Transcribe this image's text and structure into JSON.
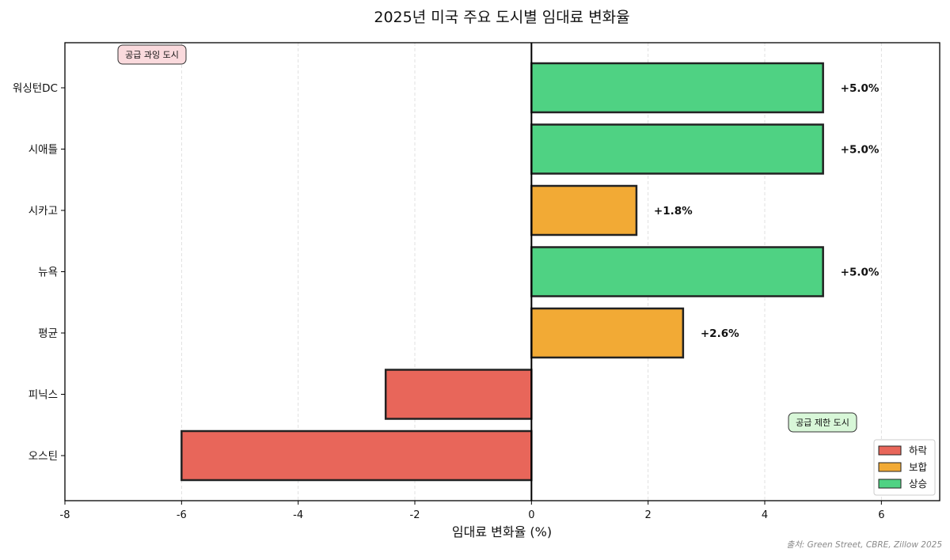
{
  "chart_data": {
    "type": "bar",
    "orientation": "horizontal",
    "title": "2025년 미국 주요 도시별 임대료 변화율",
    "xlabel": "임대료 변화율 (%)",
    "ylabel": "",
    "xlim": [
      -8,
      7
    ],
    "x_ticks": [
      -8,
      -6,
      -4,
      -2,
      0,
      2,
      4,
      6
    ],
    "x_tick_labels": [
      "-8",
      "-6",
      "-4",
      "-2",
      "0",
      "2",
      "4",
      "6"
    ],
    "grid": "vertical dashed",
    "categories": [
      "워싱턴DC",
      "시애틀",
      "시카고",
      "뉴욕",
      "평균",
      "피닉스",
      "오스틴"
    ],
    "values": [
      5.0,
      5.0,
      1.8,
      5.0,
      2.6,
      -2.5,
      -6.0
    ],
    "value_labels": [
      "+5.0%",
      "+5.0%",
      "+1.8%",
      "+5.0%",
      "+2.6%",
      "",
      ""
    ],
    "bar_groups": [
      "상승",
      "상승",
      "보합",
      "상승",
      "보합",
      "하락",
      "하락"
    ],
    "legend": {
      "placement": "bottom-right",
      "entries": [
        {
          "label": "하락",
          "color": "#e8665a"
        },
        {
          "label": "보합",
          "color": "#f2aa35"
        },
        {
          "label": "상승",
          "color": "#4fd283"
        }
      ]
    },
    "annotations": [
      {
        "text": "공급 과잉 도시",
        "placement": "top-left",
        "bg": "#fadadd"
      },
      {
        "text": "공급 제한 도시",
        "placement": "bottom-right",
        "bg": "#d8f7d8"
      }
    ],
    "source_note": "출처: Green Street, CBRE, Zillow 2025"
  }
}
